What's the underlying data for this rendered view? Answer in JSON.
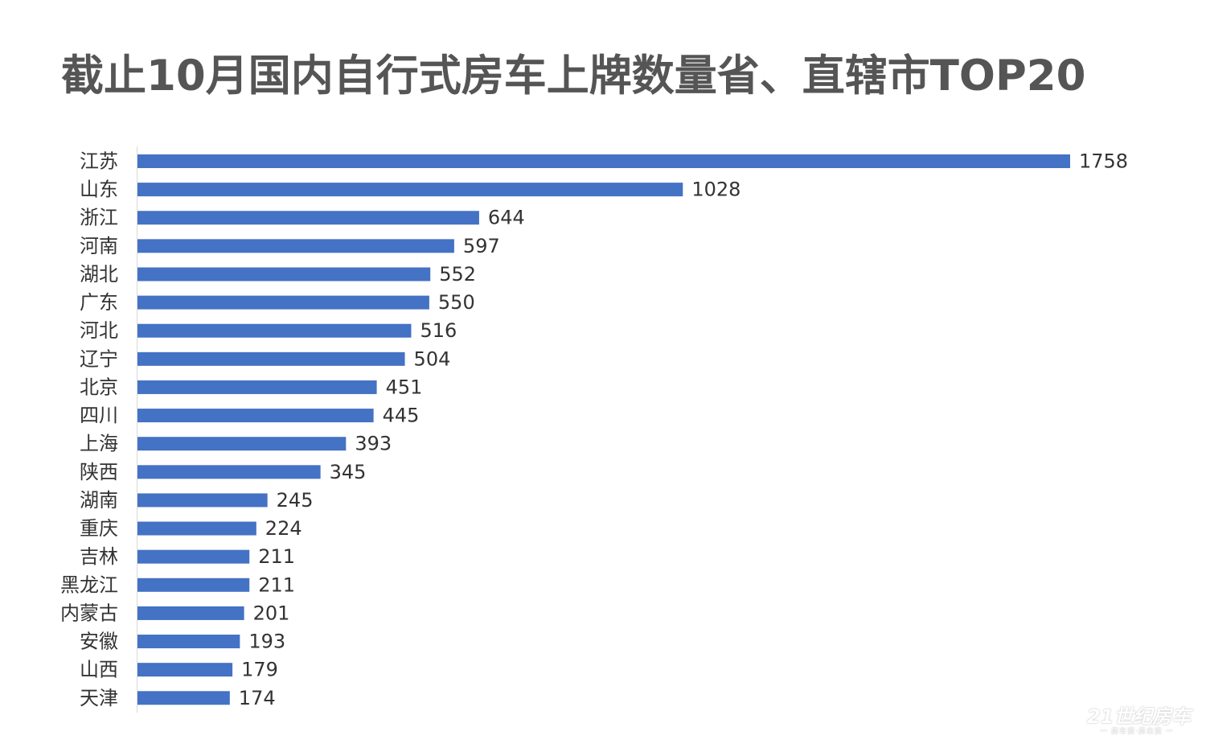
{
  "header": {
    "title": "截止10月国内自行式房车上牌数量省、直辖市TOP20"
  },
  "watermark": {
    "logo": "21世纪房车",
    "slogan": "一 房车资·房未资 一"
  },
  "colors": {
    "bar": "#4472c4",
    "axis": "#d9d9d9",
    "title": "#555555",
    "text": "#333333"
  },
  "chart_data": {
    "type": "bar",
    "orientation": "horizontal",
    "title": "截止10月国内自行式房车上牌数量省、直辖市TOP20",
    "xlabel": "",
    "ylabel": "",
    "grid": false,
    "legend": "none",
    "xlim": [
      0,
      1758
    ],
    "categories": [
      "江苏",
      "山东",
      "浙江",
      "河南",
      "湖北",
      "广东",
      "河北",
      "辽宁",
      "北京",
      "四川",
      "上海",
      "陕西",
      "湖南",
      "重庆",
      "吉林",
      "黑龙江",
      "内蒙古",
      "安徽",
      "山西",
      "天津"
    ],
    "values": [
      1758,
      1028,
      644,
      597,
      552,
      550,
      516,
      504,
      451,
      445,
      393,
      345,
      245,
      224,
      211,
      211,
      201,
      193,
      179,
      174
    ]
  }
}
